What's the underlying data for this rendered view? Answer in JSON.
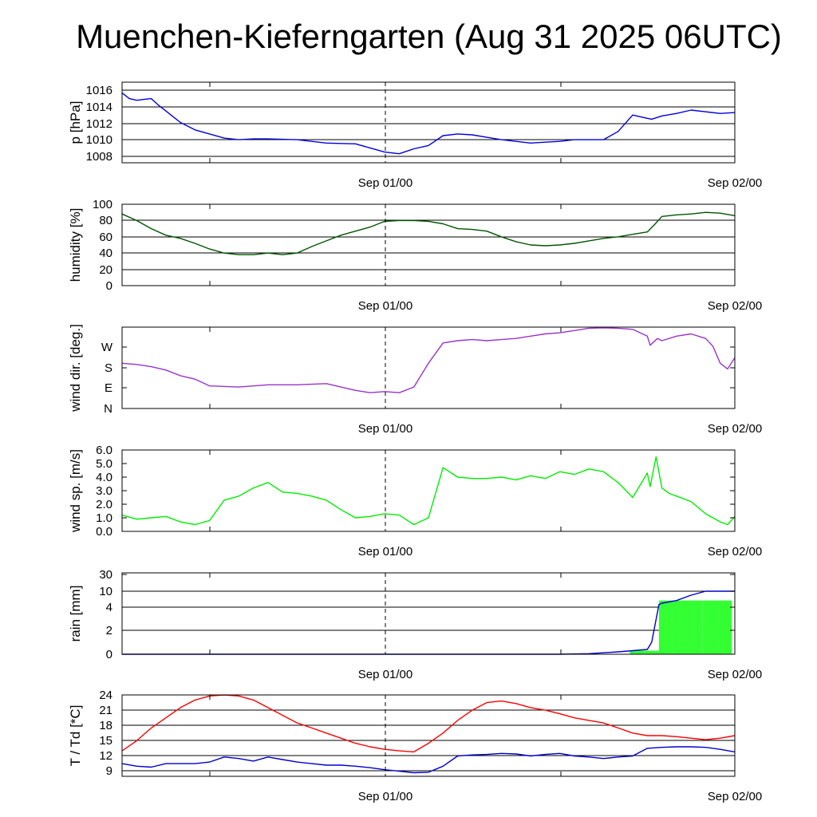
{
  "title": "Muenchen-Kieferngarten (Aug 31 2025 06UTC)",
  "chart_data": [
    {
      "id": "pressure",
      "type": "line",
      "ylabel": "p [hPa]",
      "x_ticks": [
        "Sep 01/00",
        "Sep 02/00"
      ],
      "y_ticks": [
        "1016",
        "1014",
        "1012",
        "1010",
        "1008"
      ],
      "ylim": [
        1007.2,
        1017.0
      ],
      "x_unit": "hours since Aug 31 06UTC",
      "xlim": [
        0,
        42
      ],
      "grid": true,
      "series": [
        {
          "color": "#0000dd",
          "x": [
            0,
            0.5,
            1,
            1.5,
            2,
            2.5,
            3,
            3.5,
            4,
            5,
            6,
            7,
            8,
            9,
            10,
            12,
            14,
            16,
            17,
            18,
            19,
            20,
            21,
            22,
            23,
            24,
            25,
            26,
            27,
            28,
            29,
            30,
            31,
            32,
            33,
            34,
            35,
            36,
            36.3,
            37,
            38,
            39,
            40,
            41,
            42
          ],
          "values": [
            1015.7,
            1015.0,
            1014.8,
            1014.9,
            1015.0,
            1014.2,
            1013.5,
            1012.8,
            1012.1,
            1011.2,
            1010.7,
            1010.2,
            1010.0,
            1010.1,
            1010.1,
            1010.0,
            1009.6,
            1009.5,
            1009.0,
            1008.5,
            1008.3,
            1008.9,
            1009.3,
            1010.5,
            1010.7,
            1010.6,
            1010.3,
            1010.0,
            1009.8,
            1009.6,
            1009.7,
            1009.8,
            1010.0,
            1010.0,
            1010.0,
            1011.0,
            1013.0,
            1012.6,
            1012.5,
            1012.9,
            1013.2,
            1013.6,
            1013.4,
            1013.2,
            1013.3
          ]
        }
      ]
    },
    {
      "id": "humidity",
      "type": "line",
      "ylabel": "humidity [%]",
      "x_ticks": [
        "Sep 01/00",
        "Sep 02/00"
      ],
      "y_ticks": [
        "100",
        "80",
        "60",
        "40",
        "20",
        "0"
      ],
      "ylim": [
        0,
        100
      ],
      "x_unit": "hours since Aug 31 06UTC",
      "xlim": [
        0,
        42
      ],
      "grid": true,
      "series": [
        {
          "color": "#005500",
          "x": [
            0,
            1,
            2,
            3,
            4,
            5,
            6,
            7,
            8,
            9,
            10,
            11,
            12,
            13,
            14,
            15,
            16,
            17,
            18,
            19,
            20,
            21,
            22,
            23,
            24,
            25,
            26,
            27,
            28,
            29,
            30,
            31,
            32,
            33,
            34,
            35,
            36,
            36.5,
            37,
            38,
            39,
            40,
            41,
            42
          ],
          "values": [
            88,
            80,
            70,
            62,
            58,
            52,
            45,
            40,
            38,
            38,
            40,
            38,
            40,
            48,
            55,
            62,
            67,
            72,
            79,
            80,
            80,
            79,
            76,
            70,
            69,
            67,
            60,
            54,
            50,
            49,
            50,
            52,
            55,
            58,
            60,
            63,
            66,
            75,
            85,
            87,
            88,
            90,
            89,
            86
          ]
        }
      ]
    },
    {
      "id": "wind-direction",
      "type": "line",
      "ylabel": "wind dir. [deg.]",
      "x_ticks": [
        "Sep 01/00",
        "Sep 02/00"
      ],
      "y_ticks": [
        "W",
        "S",
        "E",
        "N"
      ],
      "ylim": [
        0,
        360
      ],
      "x_unit": "hours since Aug 31 06UTC",
      "xlim": [
        0,
        42
      ],
      "grid": false,
      "series": [
        {
          "color": "#9933cc",
          "x": [
            0,
            1,
            2,
            3,
            4,
            5,
            6,
            8,
            10,
            12,
            14,
            16,
            17,
            18,
            19,
            20,
            21,
            22,
            23,
            24,
            25,
            26,
            27,
            28,
            29,
            30,
            31,
            32,
            33,
            34,
            35,
            36,
            36.2,
            36.7,
            37,
            38,
            39,
            40,
            40.5,
            41,
            41.5,
            42
          ],
          "values": [
            200,
            195,
            185,
            170,
            145,
            130,
            100,
            95,
            105,
            105,
            110,
            80,
            70,
            75,
            70,
            95,
            200,
            290,
            300,
            305,
            300,
            305,
            310,
            320,
            330,
            335,
            345,
            355,
            357,
            355,
            350,
            320,
            280,
            310,
            300,
            320,
            330,
            310,
            275,
            200,
            175,
            225
          ]
        }
      ]
    },
    {
      "id": "wind-speed",
      "type": "line",
      "ylabel": "wind sp. [m/s]",
      "x_ticks": [
        "Sep 01/00",
        "Sep 02/00"
      ],
      "y_ticks": [
        "6.0",
        "5.0",
        "4.0",
        "3.0",
        "2.0",
        "1.0",
        "0.0"
      ],
      "ylim": [
        0,
        6
      ],
      "x_unit": "hours since Aug 31 06UTC",
      "xlim": [
        0,
        42
      ],
      "grid": false,
      "series": [
        {
          "color": "#00ee00",
          "x": [
            0,
            1,
            2,
            3,
            4,
            5,
            6,
            7,
            8,
            9,
            10,
            11,
            12,
            13,
            14,
            15,
            16,
            17,
            18,
            19,
            20,
            21,
            22,
            23,
            24,
            25,
            26,
            27,
            28,
            29,
            30,
            31,
            32,
            33,
            34,
            35,
            36,
            36.2,
            36.6,
            37,
            37.5,
            38,
            39,
            40,
            41,
            41.5,
            42
          ],
          "values": [
            1.2,
            0.9,
            1.0,
            1.1,
            0.7,
            0.5,
            0.8,
            2.3,
            2.6,
            3.2,
            3.6,
            2.9,
            2.8,
            2.6,
            2.3,
            1.6,
            1.0,
            1.1,
            1.3,
            1.2,
            0.5,
            1.0,
            4.7,
            4.0,
            3.9,
            3.9,
            4.0,
            3.8,
            4.1,
            3.9,
            4.4,
            4.2,
            4.6,
            4.4,
            3.6,
            2.5,
            4.3,
            3.3,
            5.5,
            3.2,
            2.8,
            2.6,
            2.2,
            1.3,
            0.7,
            0.5,
            1.1
          ]
        }
      ]
    },
    {
      "id": "rain",
      "type": "area",
      "ylabel": "rain [mm]",
      "x_ticks": [
        "Sep 01/00",
        "Sep 02/00"
      ],
      "y_ticks": [
        "30",
        "10",
        "4",
        "2",
        "0"
      ],
      "ylim": [
        0,
        30
      ],
      "x_unit": "hours since Aug 31 06UTC",
      "xlim": [
        0,
        42
      ],
      "grid": true,
      "series": [
        {
          "color": "#33ff33",
          "kind": "bars",
          "x": [
            34.8,
            35.8,
            36.8,
            37.8,
            38.8,
            39.8,
            40.8
          ],
          "values": [
            0.3,
            0.3,
            6.5,
            6.5,
            6.5,
            6.5,
            6.5
          ]
        },
        {
          "color": "#0000cc",
          "kind": "accumulated",
          "x": [
            0,
            30,
            32,
            34,
            36,
            36.3,
            36.8,
            37,
            38,
            39,
            40,
            42
          ],
          "values": [
            0,
            0,
            0.05,
            0.2,
            0.4,
            1.0,
            5.0,
            5.5,
            6.5,
            8.5,
            10,
            10
          ]
        }
      ]
    },
    {
      "id": "temperature-dewpoint",
      "type": "line",
      "ylabel": "T / Td [*C]",
      "x_ticks": [
        "Sep 01/00",
        "Sep 02/00"
      ],
      "y_ticks": [
        "24",
        "21",
        "18",
        "15",
        "12",
        "9"
      ],
      "ylim": [
        8,
        24
      ],
      "x_unit": "hours since Aug 31 06UTC",
      "xlim": [
        0,
        42
      ],
      "grid": true,
      "series": [
        {
          "color": "#ff0000",
          "x": [
            0,
            1,
            2,
            3,
            4,
            5,
            6,
            7,
            8,
            9,
            10,
            11,
            12,
            13,
            14,
            15,
            16,
            17,
            18,
            19,
            20,
            21,
            22,
            23,
            24,
            25,
            26,
            27,
            28,
            29,
            30,
            31,
            32,
            33,
            34,
            35,
            36,
            37,
            38,
            39,
            40,
            41,
            42
          ],
          "values": [
            13,
            15,
            17.5,
            19.5,
            21.5,
            23,
            23.8,
            24,
            23.8,
            23,
            21.5,
            20,
            18.5,
            17.5,
            16.5,
            15.5,
            14.5,
            13.8,
            13.3,
            13,
            12.8,
            14.5,
            16.5,
            19,
            21,
            22.5,
            22.8,
            22.3,
            21.5,
            21,
            20.3,
            19.5,
            19,
            18.5,
            17.5,
            16.5,
            16,
            16,
            15.8,
            15.5,
            15.2,
            15.5,
            16
          ]
        },
        {
          "color": "#0000cc",
          "x": [
            0,
            1,
            2,
            3,
            4,
            5,
            6,
            7,
            8,
            9,
            10,
            11,
            12,
            13,
            14,
            15,
            16,
            17,
            18,
            19,
            20,
            21,
            22,
            23,
            24,
            25,
            26,
            27,
            28,
            29,
            30,
            31,
            32,
            33,
            34,
            35,
            36,
            37,
            38,
            39,
            40,
            41,
            42
          ],
          "values": [
            10.5,
            10,
            9.8,
            10.5,
            10.5,
            10.5,
            10.8,
            11.8,
            11.5,
            11,
            11.8,
            11.3,
            10.8,
            10.5,
            10.2,
            10.2,
            10,
            9.7,
            9.3,
            9,
            8.7,
            8.8,
            10,
            12,
            12.2,
            12.3,
            12.5,
            12.4,
            12,
            12.3,
            12.5,
            12,
            11.8,
            11.5,
            11.8,
            12,
            13.5,
            13.7,
            13.8,
            13.8,
            13.7,
            13.3,
            12.8
          ]
        }
      ]
    }
  ]
}
